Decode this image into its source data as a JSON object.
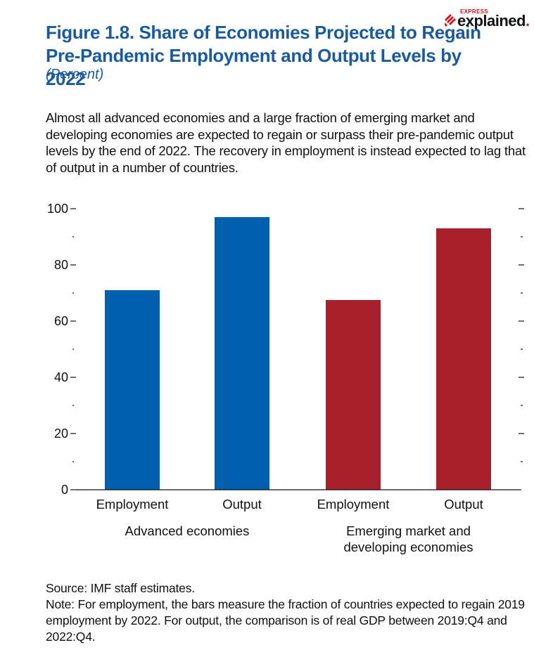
{
  "header": {
    "title_line1": "Figure 1.8.  Share of Economies Projected to Regain",
    "title_line2": "Pre-Pandemic Employment and Output Levels by 2022",
    "subtitle": "(Percent)"
  },
  "logo": {
    "small_text": "EXPRESS",
    "main_text": "explained",
    "dot": ".",
    "accent_color": "#d4151d"
  },
  "description": "Almost all advanced economies and a large fraction of emerging market and developing economies are expected to regain or surpass their pre-pandemic output levels by the end of 2022. The recovery in employment is instead expected to lag that of output in a number of countries.",
  "chart_data": {
    "type": "bar",
    "categories": [
      "Employment",
      "Output",
      "Employment",
      "Output"
    ],
    "groups": [
      {
        "label_lines": [
          "Advanced economies"
        ],
        "categories": [
          0,
          1
        ],
        "color": "#0060ad"
      },
      {
        "label_lines": [
          "Emerging market and",
          "developing economies"
        ],
        "categories": [
          2,
          3
        ],
        "color": "#a8202b"
      }
    ],
    "values": [
      71,
      97,
      67.5,
      93
    ],
    "colors": [
      "#0060ad",
      "#0060ad",
      "#a8202b",
      "#a8202b"
    ],
    "ylim": [
      0,
      100
    ],
    "yticks": [
      0,
      20,
      40,
      60,
      80,
      100
    ],
    "xlabel": "",
    "ylabel": "",
    "grid": false
  },
  "footer": {
    "source": "Source: IMF staff estimates.",
    "note": "Note: For employment, the bars measure the fraction of countries expected to regain 2019 employment by 2022. For output, the comparison is of real GDP between 2019:Q4 and 2022:Q4."
  }
}
